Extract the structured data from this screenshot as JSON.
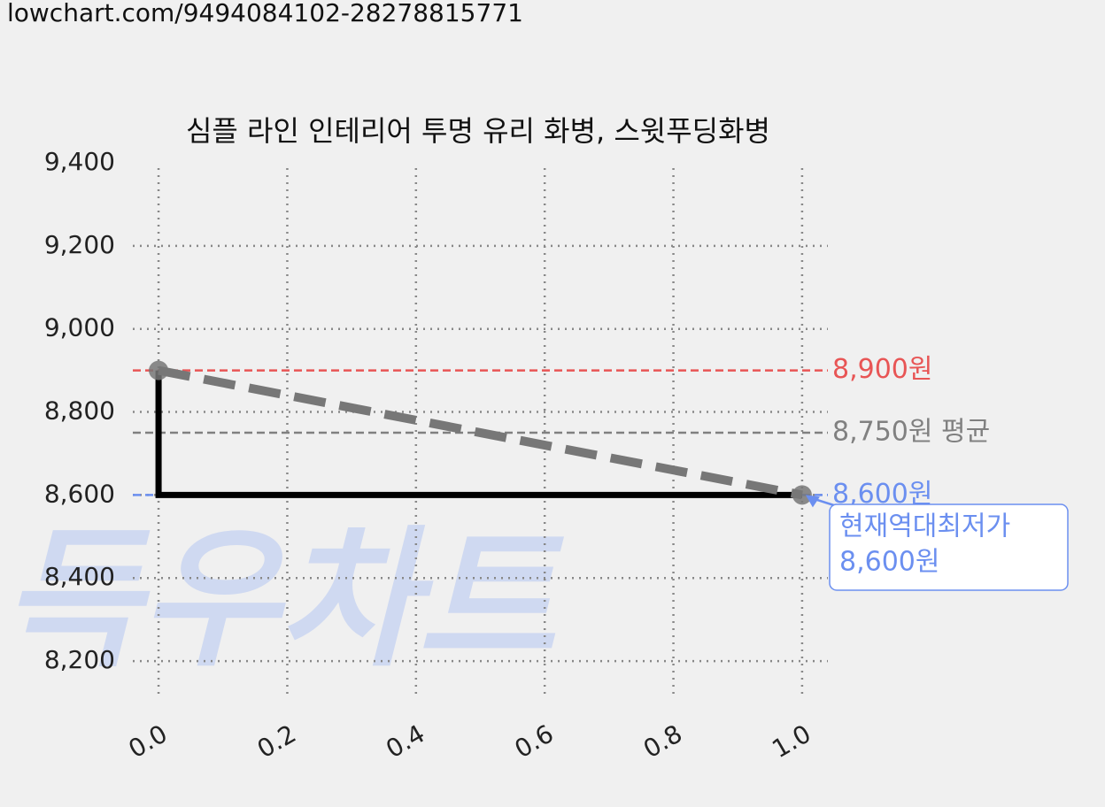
{
  "header": "lowchart.com/9494084102-28278815771",
  "watermark": "득우차트",
  "chart_data": {
    "type": "line",
    "title": "심플 라인 인테리어 투명 유리 화병, 스윗푸딩화병",
    "xlim": [
      -0.04,
      1.04
    ],
    "xticks": [
      {
        "value": 0,
        "label": "0.0"
      },
      0.2,
      0.4,
      0.6,
      0.8,
      {
        "value": 1,
        "label": "1.0"
      }
    ],
    "ylim": [
      8100,
      9400
    ],
    "yticks": [
      {
        "value": 8200,
        "label": "8,200"
      },
      {
        "value": 8400,
        "label": "8,400"
      },
      {
        "value": 8600,
        "label": "8,600"
      },
      {
        "value": 8800,
        "label": "8,800"
      },
      {
        "value": 9000,
        "label": "9,000"
      },
      {
        "value": 9200,
        "label": "9,200"
      },
      {
        "value": 9400,
        "label": "9,400"
      }
    ],
    "grid": true,
    "series": [
      {
        "color": "#000000",
        "x": [
          0,
          0,
          1
        ],
        "values": [
          8900,
          8600,
          8600
        ],
        "style": "solid"
      },
      {
        "color": "#777777",
        "x": [
          0,
          1
        ],
        "values": [
          8900,
          8600
        ],
        "style": "dashed",
        "markers": true
      }
    ],
    "reference_lines": [
      {
        "value": 8900,
        "label": "8,900원",
        "color": "#e85555"
      },
      {
        "value": 8750,
        "label": "8,750원 평균",
        "color": "#808080"
      },
      {
        "value": 8600,
        "label": "8,600원",
        "color": "#6b8ff0"
      }
    ],
    "annotation": {
      "x": 1,
      "y": 8600,
      "lines": [
        "현재역대최저가",
        "8,600원"
      ],
      "color": "#6b8ff0"
    }
  }
}
